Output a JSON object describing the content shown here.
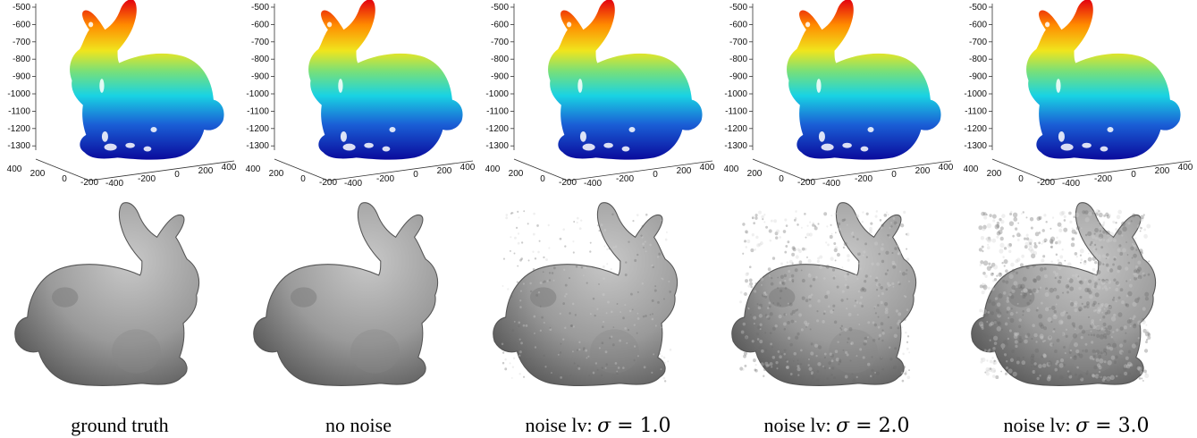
{
  "panels": [
    {
      "caption_text": "ground truth",
      "caption_prefix": "",
      "sigma_symbol": "",
      "equals": "",
      "sigma_value": "",
      "noise": 0
    },
    {
      "caption_text": "no noise",
      "caption_prefix": "",
      "sigma_symbol": "",
      "equals": "",
      "sigma_value": "",
      "noise": 0
    },
    {
      "caption_text": "",
      "caption_prefix": "noise lv: ",
      "sigma_symbol": "σ",
      "equals": " = ",
      "sigma_value": "1.0",
      "noise": 1
    },
    {
      "caption_text": "",
      "caption_prefix": "noise lv: ",
      "sigma_symbol": "σ",
      "equals": " = ",
      "sigma_value": "2.0",
      "noise": 2
    },
    {
      "caption_text": "",
      "caption_prefix": "noise lv: ",
      "sigma_symbol": "σ",
      "equals": " = ",
      "sigma_value": "3.0",
      "noise": 3
    }
  ],
  "axes": {
    "z_ticks": [
      "-500",
      "-600",
      "-700",
      "-800",
      "-900",
      "-1000",
      "-1100",
      "-1200",
      "-1300"
    ],
    "x_ticks": [
      "400",
      "200",
      "0",
      "-200"
    ],
    "y_ticks": [
      "-400",
      "-200",
      "0",
      "200",
      "400"
    ]
  },
  "colormap": {
    "name": "jet",
    "top": "#e3000f",
    "orange": "#ff8c00",
    "yellow": "#f0e51d",
    "green": "#77e07a",
    "cyan": "#19d3e3",
    "blue": "#1a5fd6",
    "bottom": "#0a0a9c"
  }
}
